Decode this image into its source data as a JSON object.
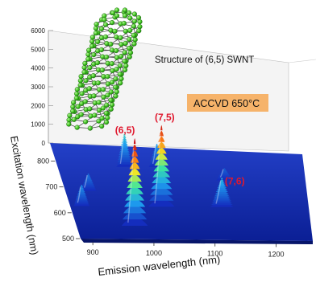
{
  "chart_data": {
    "type": "surface-3d",
    "title": "",
    "xlabel": "Emission wavelength (nm)",
    "ylabel": "Excitation wavelength (nm)",
    "zlabel": "",
    "x_ticks": [
      "900",
      "1000",
      "1100",
      "1200"
    ],
    "y_ticks": [
      "500",
      "600",
      "700",
      "800"
    ],
    "z_ticks": [
      "0",
      "1000",
      "2000",
      "3000",
      "4000",
      "5000",
      "6000"
    ],
    "xlim": [
      880,
      1260
    ],
    "ylim": [
      500,
      870
    ],
    "zlim": [
      0,
      6000
    ],
    "colormap": "jet",
    "peaks": [
      {
        "label": "(6,5)",
        "emission": 976,
        "excitation": 566,
        "intensity": 4200
      },
      {
        "label": "(7,5)",
        "emission": 1027,
        "excitation": 645,
        "intensity": 3900
      },
      {
        "label": "(7,6)",
        "emission": 1123,
        "excitation": 650,
        "intensity": 1300
      }
    ],
    "secondary_peaks": [
      {
        "emission": 985,
        "excitation": 800,
        "intensity": 1500
      },
      {
        "emission": 1035,
        "excitation": 805,
        "intensity": 1000
      },
      {
        "emission": 918,
        "excitation": 700,
        "intensity": 700
      },
      {
        "emission": 1135,
        "excitation": 760,
        "intensity": 450
      },
      {
        "emission": 900,
        "excitation": 640,
        "intensity": 900
      }
    ],
    "annotations": {
      "structure_caption": "Structure of (6,5) SWNT",
      "condition_badge": "ACCVD 650°C"
    },
    "colors": {
      "badge_fill": "#f6b36a",
      "peak_label": "#e0182e",
      "surface_base": "#1a2fb0"
    }
  }
}
